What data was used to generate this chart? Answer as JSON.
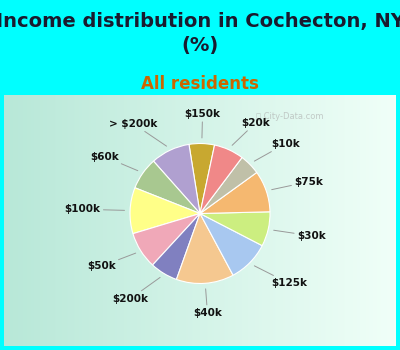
{
  "title": "Income distribution in Cochecton, NY\n(%)",
  "subtitle": "All residents",
  "title_fontsize": 14,
  "subtitle_fontsize": 12,
  "title_color": "#1a1a2e",
  "subtitle_color": "#cc6600",
  "background_color": "#00ffff",
  "chart_bg_left": "#b8e8d8",
  "chart_bg_right": "#e8f8f4",
  "labels": [
    "$150k",
    "> $200k",
    "$60k",
    "$100k",
    "$50k",
    "$200k",
    "$40k",
    "$125k",
    "$30k",
    "$75k",
    "$10k",
    "$20k"
  ],
  "values": [
    5.5,
    8.5,
    7.0,
    10.0,
    8.0,
    6.0,
    12.5,
    9.0,
    7.5,
    9.0,
    4.5,
    6.5
  ],
  "colors": [
    "#c8a830",
    "#b0a0d0",
    "#a8c890",
    "#ffff88",
    "#f0a8b8",
    "#8080c0",
    "#f5c890",
    "#a8c8f0",
    "#ccee80",
    "#f5b870",
    "#c0c0a8",
    "#f08888"
  ],
  "wedge_edge_color": "#ffffff",
  "label_color": "#111111",
  "label_fontsize": 7.5,
  "startangle": 78
}
